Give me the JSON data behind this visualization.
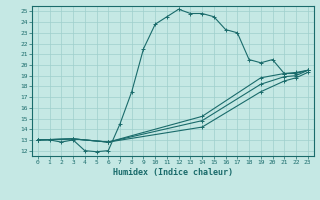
{
  "xlabel": "Humidex (Indice chaleur)",
  "xlim": [
    -0.5,
    23.5
  ],
  "ylim": [
    11.5,
    25.5
  ],
  "xticks": [
    0,
    1,
    2,
    3,
    4,
    5,
    6,
    7,
    8,
    9,
    10,
    11,
    12,
    13,
    14,
    15,
    16,
    17,
    18,
    19,
    20,
    21,
    22,
    23
  ],
  "yticks": [
    12,
    13,
    14,
    15,
    16,
    17,
    18,
    19,
    20,
    21,
    22,
    23,
    24,
    25
  ],
  "bg_color": "#c5e8e4",
  "line_color": "#1a6b6b",
  "grid_color": "#9fcfcc",
  "curves": [
    {
      "x": [
        0,
        1,
        2,
        3,
        4,
        5,
        6,
        7,
        8,
        9,
        10,
        11,
        12,
        13,
        14,
        15,
        16,
        17,
        18,
        19,
        20,
        21,
        22,
        23
      ],
      "y": [
        13,
        13,
        12.8,
        13,
        12,
        11.9,
        12,
        14.5,
        17.5,
        21.5,
        23.8,
        24.5,
        25.2,
        24.8,
        24.8,
        24.5,
        23.3,
        23,
        20.5,
        20.2,
        20.5,
        19.2,
        19.3,
        19.5
      ]
    },
    {
      "x": [
        0,
        3,
        6,
        14,
        19,
        21,
        22,
        23
      ],
      "y": [
        13,
        13.1,
        12.8,
        15.2,
        18.8,
        19.2,
        19.2,
        19.5
      ]
    },
    {
      "x": [
        0,
        3,
        6,
        14,
        19,
        21,
        22,
        23
      ],
      "y": [
        13,
        13.1,
        12.8,
        14.8,
        18.2,
        18.9,
        19.0,
        19.5
      ]
    },
    {
      "x": [
        0,
        3,
        6,
        14,
        19,
        21,
        22,
        23
      ],
      "y": [
        13,
        13.1,
        12.8,
        14.2,
        17.5,
        18.5,
        18.8,
        19.3
      ]
    }
  ]
}
